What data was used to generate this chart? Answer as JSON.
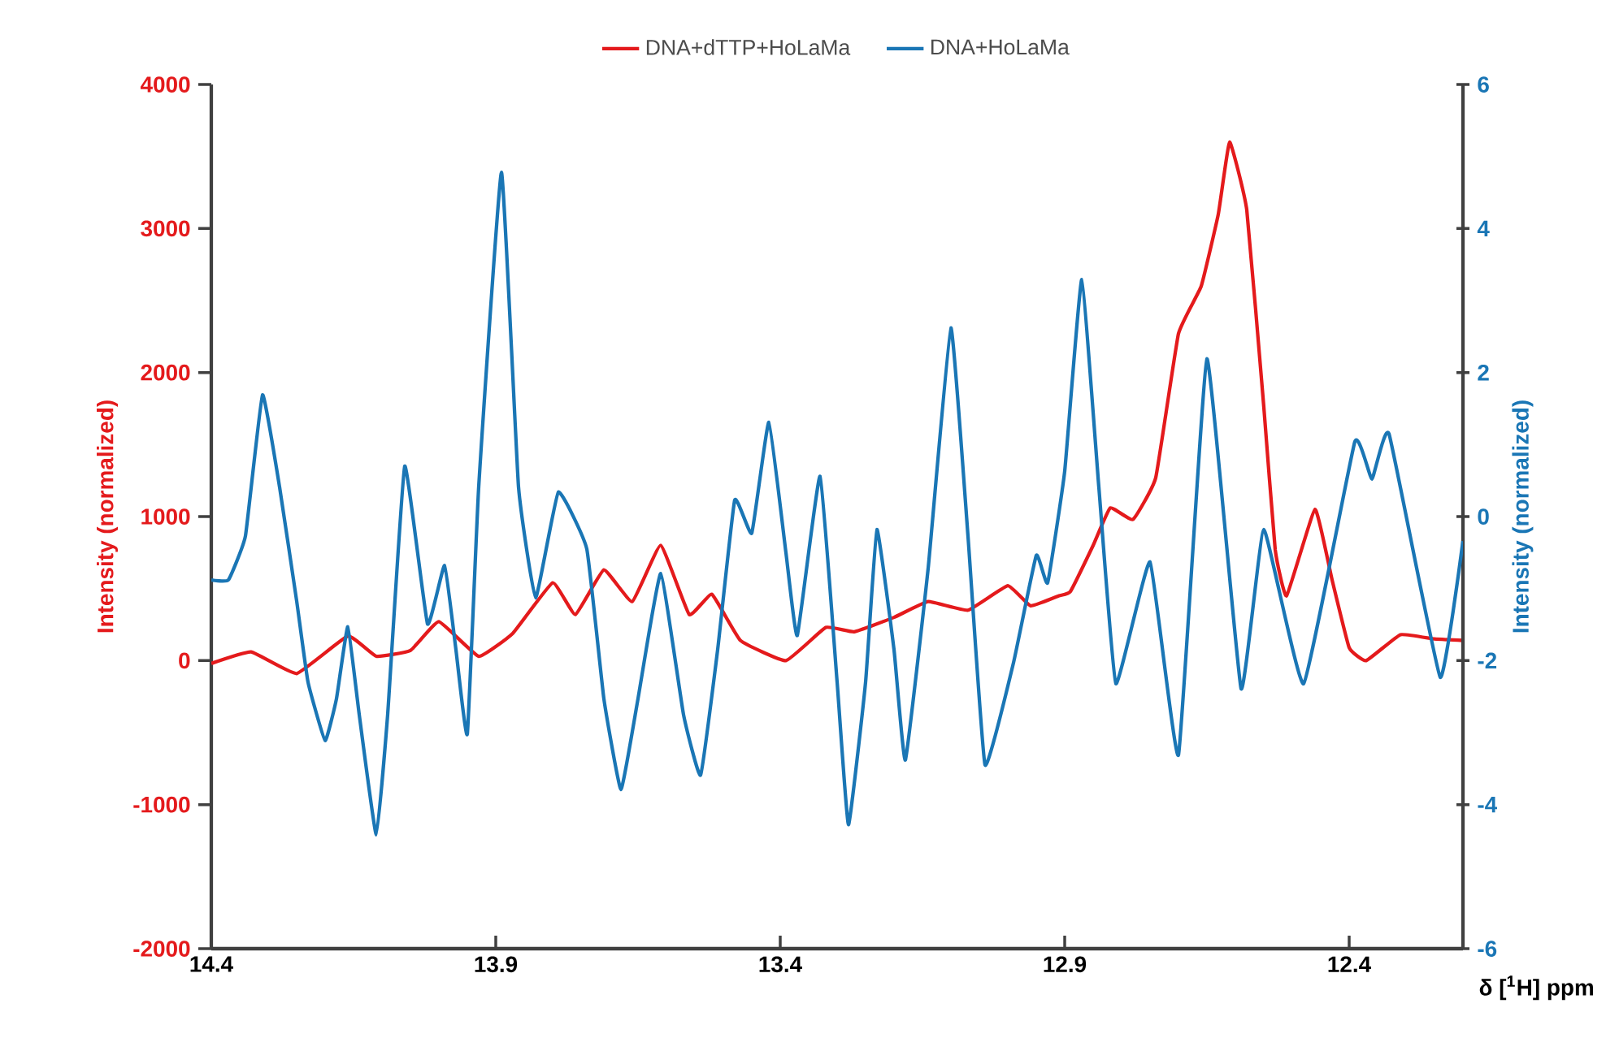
{
  "chart_data": {
    "type": "line",
    "xlabel": "δ [$^{1}$H] ppm",
    "ylabel": "Intensity (normalized)",
    "y2label": "Intensity (normalized)",
    "xlim": [
      14.4,
      12.2
    ],
    "xticks": [
      14.4,
      13.9,
      13.4,
      12.9,
      12.4
    ],
    "ylim": [
      -2000,
      4000
    ],
    "yticks": [
      -2000,
      -1000,
      0,
      1000,
      2000,
      3000,
      4000
    ],
    "y2lim": [
      -6,
      6
    ],
    "y2ticks": [
      -6,
      -4,
      -2,
      0,
      2,
      4,
      6
    ],
    "legend": "top",
    "line_style": "solid",
    "series": [
      {
        "name": "DNA+dTTP+HoLaMa",
        "color": "#e41a1c",
        "axis": "y",
        "x": [
          14.4,
          14.33,
          14.25,
          14.16,
          14.11,
          14.05,
          14.0,
          13.93,
          13.87,
          13.8,
          13.76,
          13.71,
          13.66,
          13.61,
          13.56,
          13.52,
          13.47,
          13.39,
          13.32,
          13.27,
          13.2,
          13.14,
          13.07,
          13.0,
          12.96,
          12.91,
          12.89,
          12.85,
          12.82,
          12.78,
          12.74,
          12.7,
          12.66,
          12.63,
          12.61,
          12.58,
          12.55,
          12.53,
          12.51,
          12.46,
          12.43,
          12.4,
          12.37,
          12.31,
          12.25,
          12.2
        ],
        "values": [
          -20,
          60,
          -90,
          170,
          30,
          70,
          270,
          30,
          190,
          540,
          320,
          630,
          410,
          800,
          320,
          460,
          140,
          0,
          230,
          200,
          300,
          410,
          350,
          520,
          380,
          450,
          480,
          800,
          1060,
          980,
          1270,
          2270,
          2600,
          3100,
          3600,
          3130,
          1760,
          770,
          450,
          1050,
          560,
          90,
          0,
          180,
          150,
          140
        ]
      },
      {
        "name": "DNA+HoLaMa",
        "color": "#1a76b5",
        "axis": "y2",
        "x": [
          14.4,
          14.37,
          14.34,
          14.31,
          14.28,
          14.25,
          14.23,
          14.2,
          14.18,
          14.16,
          14.14,
          14.11,
          14.09,
          14.06,
          14.02,
          13.99,
          13.97,
          13.95,
          13.93,
          13.89,
          13.86,
          13.83,
          13.79,
          13.74,
          13.71,
          13.68,
          13.65,
          13.61,
          13.57,
          13.54,
          13.51,
          13.48,
          13.45,
          13.42,
          13.39,
          13.37,
          13.33,
          13.3,
          13.28,
          13.25,
          13.23,
          13.2,
          13.18,
          13.14,
          13.1,
          13.07,
          13.04,
          12.99,
          12.95,
          12.93,
          12.9,
          12.87,
          12.84,
          12.81,
          12.75,
          12.7,
          12.65,
          12.59,
          12.55,
          12.48,
          12.39,
          12.36,
          12.33,
          12.24,
          12.2
        ],
        "values": [
          -0.88,
          -0.88,
          -0.27,
          1.69,
          0.41,
          -1.17,
          -2.3,
          -3.11,
          -2.53,
          -1.53,
          -2.75,
          -4.42,
          -2.75,
          0.7,
          -1.49,
          -0.68,
          -1.85,
          -3.02,
          0.41,
          4.78,
          0.41,
          -1.13,
          0.34,
          -0.45,
          -2.53,
          -3.79,
          -2.53,
          -0.79,
          -2.75,
          -3.59,
          -1.85,
          0.23,
          -0.23,
          1.31,
          -0.5,
          -1.65,
          0.56,
          -2.3,
          -4.28,
          -2.3,
          -0.18,
          -1.85,
          -3.38,
          -0.72,
          2.62,
          -0.27,
          -3.45,
          -2.03,
          -0.54,
          -0.92,
          0.63,
          3.29,
          0.41,
          -2.32,
          -0.63,
          -3.31,
          2.19,
          -2.39,
          -0.18,
          -2.32,
          1.04,
          0.52,
          1.15,
          -2.23,
          -0.34
        ]
      }
    ]
  }
}
